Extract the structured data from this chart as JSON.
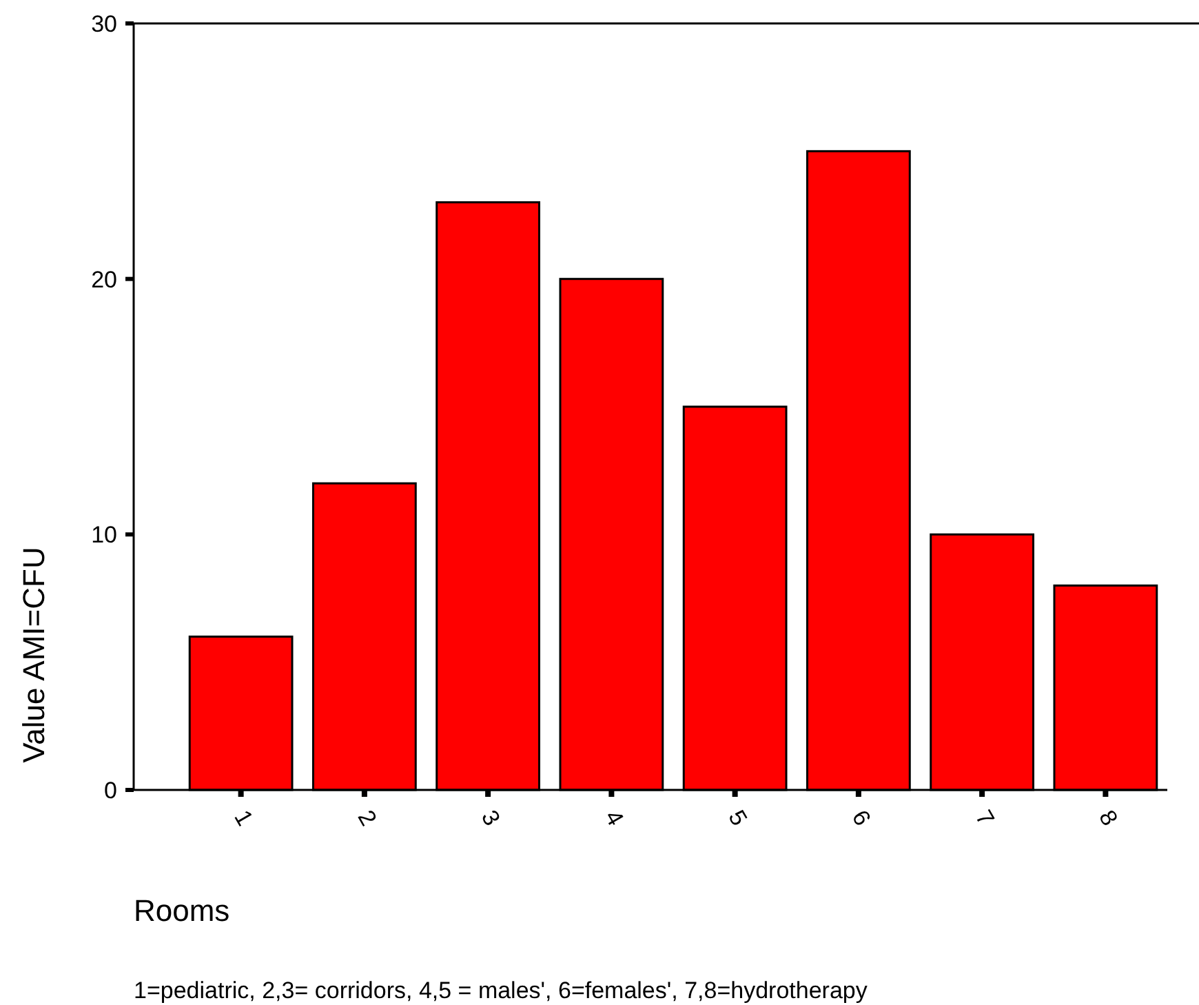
{
  "chart_data": {
    "type": "bar",
    "xlabel": "Rooms",
    "ylabel": "Value AMI=CFU",
    "categories": [
      "1",
      "2",
      "3",
      "4",
      "5",
      "6",
      "7",
      "8"
    ],
    "values": [
      6,
      12,
      23,
      20,
      15,
      25,
      10,
      8
    ],
    "color": "#ff0000",
    "ylim": [
      0,
      30
    ],
    "yticks": [
      0,
      10,
      20,
      30
    ],
    "grid": false,
    "annotations": [
      "1=pediatric, 2,3= corridors, 4,5 = males', 6=females', 7,8=hydrotherapy"
    ]
  }
}
